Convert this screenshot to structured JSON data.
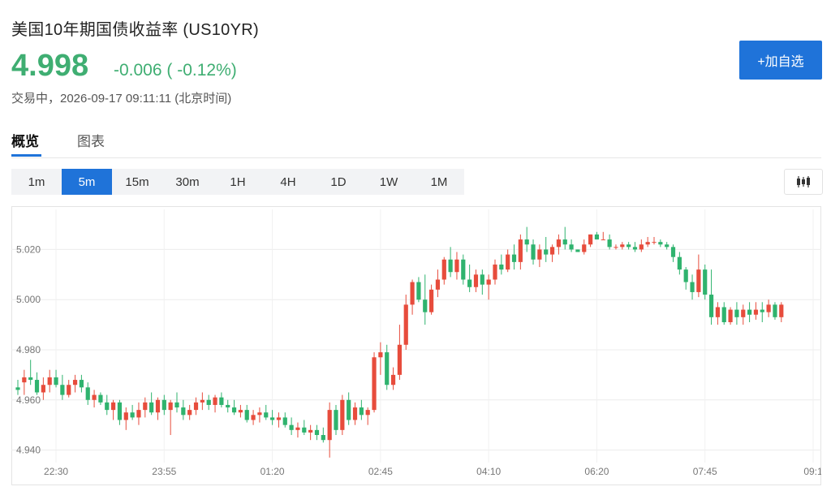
{
  "header": {
    "title": "美国10年期国债收益率 (US10YR)",
    "price": "4.998",
    "change": "-0.006 ( -0.12%)",
    "status": "交易中，2026-09-17 09:11:11 (北京时间)",
    "add_button": "+加自选"
  },
  "tabs": [
    {
      "label": "概览",
      "active": true
    },
    {
      "label": "图表",
      "active": false
    }
  ],
  "periods": [
    "1m",
    "5m",
    "15m",
    "30m",
    "1H",
    "4H",
    "1D",
    "1W",
    "1M"
  ],
  "active_period": "5m",
  "chart_type_icon": "candlestick-icon",
  "colors": {
    "up": "#e74c3c",
    "down": "#2fb36e",
    "accent": "#1f73d9",
    "price": "#3fae72"
  },
  "chart_data": {
    "type": "candlestick",
    "y_ticks": [
      "4.940",
      "4.960",
      "4.980",
      "5.000",
      "5.020"
    ],
    "ylim": [
      4.935,
      5.036
    ],
    "x_ticks": [
      {
        "label": "22:30",
        "index": 6
      },
      {
        "label": "23:55",
        "index": 23
      },
      {
        "label": "01:20",
        "index": 40
      },
      {
        "label": "02:45",
        "index": 57
      },
      {
        "label": "04:10",
        "index": 74
      },
      {
        "label": "06:20",
        "index": 91
      },
      {
        "label": "07:45",
        "index": 108
      },
      {
        "label": "09:1",
        "index": 125
      }
    ],
    "grid": true,
    "candles": [
      [
        4.965,
        4.968,
        4.962,
        4.964
      ],
      [
        4.967,
        4.972,
        4.962,
        4.969
      ],
      [
        4.969,
        4.976,
        4.966,
        4.968
      ],
      [
        4.968,
        4.971,
        4.962,
        4.963
      ],
      [
        4.963,
        4.969,
        4.96,
        4.966
      ],
      [
        4.966,
        4.972,
        4.963,
        4.969
      ],
      [
        4.969,
        4.972,
        4.965,
        4.966
      ],
      [
        4.966,
        4.97,
        4.96,
        4.962
      ],
      [
        4.962,
        4.968,
        4.961,
        4.966
      ],
      [
        4.966,
        4.97,
        4.963,
        4.968
      ],
      [
        4.968,
        4.97,
        4.963,
        4.965
      ],
      [
        4.965,
        4.967,
        4.958,
        4.96
      ],
      [
        4.96,
        4.964,
        4.957,
        4.962
      ],
      [
        4.962,
        4.963,
        4.958,
        4.959
      ],
      [
        4.959,
        4.962,
        4.954,
        4.956
      ],
      [
        4.956,
        4.96,
        4.952,
        4.959
      ],
      [
        4.959,
        4.96,
        4.95,
        4.952
      ],
      [
        4.952,
        4.957,
        4.948,
        4.955
      ],
      [
        4.955,
        4.958,
        4.952,
        4.953
      ],
      [
        4.953,
        4.959,
        4.95,
        4.956
      ],
      [
        4.956,
        4.961,
        4.953,
        4.959
      ],
      [
        4.959,
        4.963,
        4.954,
        4.955
      ],
      [
        4.955,
        4.961,
        4.952,
        4.96
      ],
      [
        4.96,
        4.962,
        4.954,
        4.956
      ],
      [
        4.956,
        4.96,
        4.946,
        4.959
      ],
      [
        4.959,
        4.963,
        4.955,
        4.957
      ],
      [
        4.957,
        4.96,
        4.952,
        4.954
      ],
      [
        4.954,
        4.958,
        4.952,
        4.956
      ],
      [
        4.956,
        4.961,
        4.954,
        4.959
      ],
      [
        4.959,
        4.963,
        4.956,
        4.96
      ],
      [
        4.96,
        4.962,
        4.956,
        4.958
      ],
      [
        4.958,
        4.962,
        4.955,
        4.961
      ],
      [
        4.961,
        4.963,
        4.957,
        4.958
      ],
      [
        4.958,
        4.96,
        4.955,
        4.957
      ],
      [
        4.957,
        4.96,
        4.954,
        4.955
      ],
      [
        4.955,
        4.958,
        4.953,
        4.956
      ],
      [
        4.956,
        4.958,
        4.951,
        4.952
      ],
      [
        4.952,
        4.956,
        4.95,
        4.954
      ],
      [
        4.954,
        4.957,
        4.951,
        4.955
      ],
      [
        4.955,
        4.958,
        4.952,
        4.953
      ],
      [
        4.953,
        4.956,
        4.95,
        4.952
      ],
      [
        4.952,
        4.955,
        4.949,
        4.953
      ],
      [
        4.953,
        4.955,
        4.949,
        4.95
      ],
      [
        4.95,
        4.953,
        4.946,
        4.948
      ],
      [
        4.948,
        4.951,
        4.945,
        4.949
      ],
      [
        4.949,
        4.952,
        4.946,
        4.947
      ],
      [
        4.947,
        4.95,
        4.944,
        4.948
      ],
      [
        4.948,
        4.95,
        4.944,
        4.946
      ],
      [
        4.946,
        4.949,
        4.943,
        4.944
      ],
      [
        4.944,
        4.959,
        4.937,
        4.956
      ],
      [
        4.956,
        4.958,
        4.946,
        4.948
      ],
      [
        4.948,
        4.962,
        4.946,
        4.96
      ],
      [
        4.96,
        4.963,
        4.95,
        4.952
      ],
      [
        4.952,
        4.959,
        4.95,
        4.957
      ],
      [
        4.957,
        4.96,
        4.952,
        4.954
      ],
      [
        4.954,
        4.957,
        4.95,
        4.956
      ],
      [
        4.956,
        4.979,
        4.955,
        4.977
      ],
      [
        4.977,
        4.983,
        4.97,
        4.979
      ],
      [
        4.979,
        4.982,
        4.964,
        4.966
      ],
      [
        4.966,
        4.973,
        4.964,
        4.97
      ],
      [
        4.97,
        4.99,
        4.968,
        4.982
      ],
      [
        4.982,
        5.002,
        4.98,
        4.998
      ],
      [
        4.998,
        5.008,
        4.994,
        5.007
      ],
      [
        5.007,
        5.009,
        4.999,
        5.0
      ],
      [
        5.0,
        5.01,
        4.99,
        4.995
      ],
      [
        4.995,
        5.006,
        4.994,
        5.004
      ],
      [
        5.004,
        5.012,
        5.001,
        5.008
      ],
      [
        5.008,
        5.017,
        5.006,
        5.016
      ],
      [
        5.016,
        5.021,
        5.009,
        5.011
      ],
      [
        5.011,
        5.019,
        5.008,
        5.016
      ],
      [
        5.016,
        5.018,
        5.006,
        5.008
      ],
      [
        5.008,
        5.014,
        5.003,
        5.005
      ],
      [
        5.005,
        5.012,
        5.003,
        5.01
      ],
      [
        5.01,
        5.012,
        5.002,
        5.006
      ],
      [
        5.006,
        5.01,
        5.0,
        5.008
      ],
      [
        5.008,
        5.016,
        5.006,
        5.014
      ],
      [
        5.014,
        5.018,
        5.01,
        5.012
      ],
      [
        5.012,
        5.02,
        5.011,
        5.018
      ],
      [
        5.018,
        5.022,
        5.012,
        5.015
      ],
      [
        5.015,
        5.026,
        5.012,
        5.024
      ],
      [
        5.024,
        5.029,
        5.019,
        5.022
      ],
      [
        5.022,
        5.024,
        5.014,
        5.016
      ],
      [
        5.016,
        5.022,
        5.013,
        5.02
      ],
      [
        5.02,
        5.025,
        5.015,
        5.018
      ],
      [
        5.018,
        5.022,
        5.015,
        5.021
      ],
      [
        5.021,
        5.026,
        5.018,
        5.024
      ],
      [
        5.024,
        5.029,
        5.02,
        5.022
      ],
      [
        5.022,
        5.024,
        5.019,
        5.02
      ],
      [
        5.02,
        5.02,
        5.019,
        5.019
      ],
      [
        5.019,
        5.024,
        5.018,
        5.022
      ],
      [
        5.022,
        5.026,
        5.021,
        5.026
      ],
      [
        5.026,
        5.027,
        5.024,
        5.024
      ],
      [
        5.024,
        5.027,
        5.024,
        5.024
      ],
      [
        5.024,
        5.026,
        5.02,
        5.021
      ],
      [
        5.021,
        5.022,
        5.02,
        5.021
      ],
      [
        5.021,
        5.023,
        5.02,
        5.022
      ],
      [
        5.022,
        5.023,
        5.02,
        5.021
      ],
      [
        5.021,
        5.023,
        5.019,
        5.02
      ],
      [
        5.02,
        5.024,
        5.019,
        5.022
      ],
      [
        5.022,
        5.025,
        5.021,
        5.023
      ],
      [
        5.023,
        5.025,
        5.022,
        5.023
      ],
      [
        5.023,
        5.024,
        5.021,
        5.022
      ],
      [
        5.022,
        5.023,
        5.02,
        5.021
      ],
      [
        5.021,
        5.022,
        5.015,
        5.017
      ],
      [
        5.017,
        5.019,
        5.01,
        5.012
      ],
      [
        5.012,
        5.013,
        5.004,
        5.007
      ],
      [
        5.007,
        5.01,
        5.0,
        5.003
      ],
      [
        5.003,
        5.018,
        5.001,
        5.012
      ],
      [
        5.012,
        5.014,
        5.0,
        5.002
      ],
      [
        5.002,
        5.012,
        4.99,
        4.993
      ],
      [
        4.993,
        4.999,
        4.99,
        4.997
      ],
      [
        4.997,
        4.999,
        4.99,
        4.991
      ],
      [
        4.991,
        4.997,
        4.99,
        4.996
      ],
      [
        4.996,
        4.999,
        4.99,
        4.993
      ],
      [
        4.993,
        4.998,
        4.99,
        4.996
      ],
      [
        4.996,
        4.999,
        4.991,
        4.994
      ],
      [
        4.994,
        4.999,
        4.992,
        4.996
      ],
      [
        4.996,
        4.999,
        4.991,
        4.995
      ],
      [
        4.995,
        5.0,
        4.993,
        4.998
      ],
      [
        4.998,
        4.999,
        4.992,
        4.993
      ],
      [
        4.993,
        4.999,
        4.991,
        4.998
      ]
    ]
  }
}
